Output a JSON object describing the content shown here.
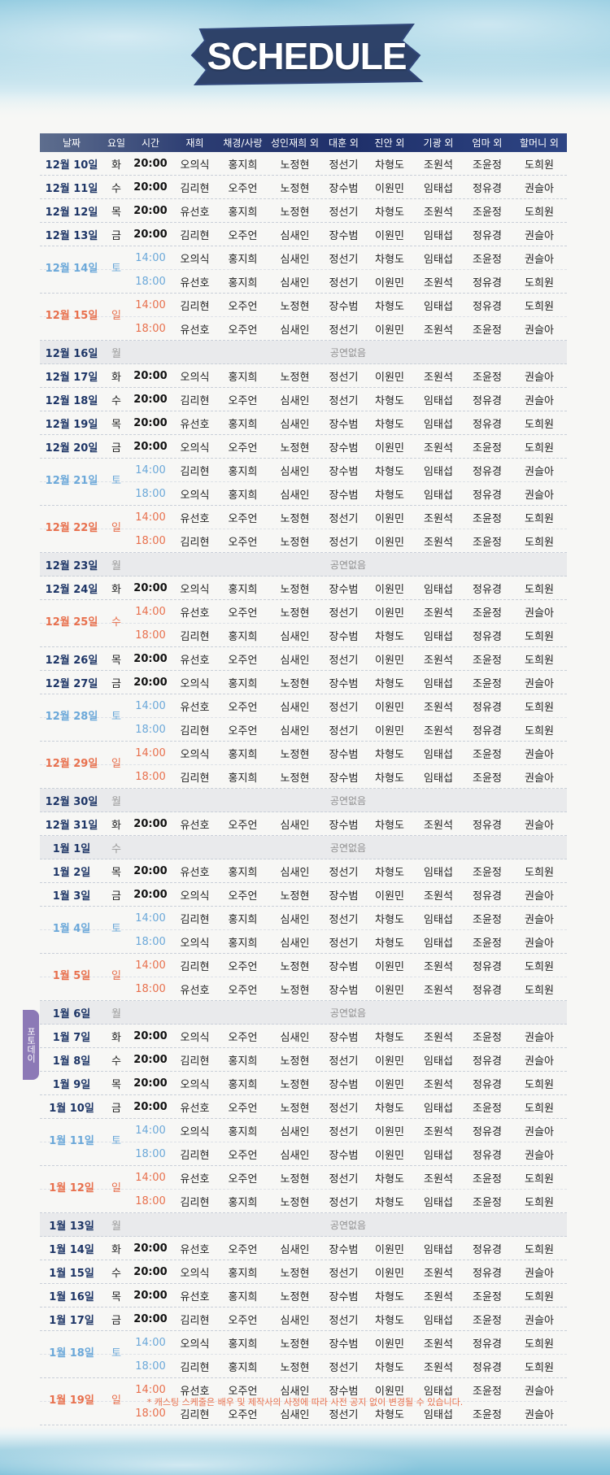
{
  "title": "SCHEDULE",
  "columns": [
    "날짜",
    "요일",
    "시간",
    "재희",
    "채경/사랑",
    "성인재희 외",
    "대훈 외",
    "진안 외",
    "기광 외",
    "엄마 외",
    "할머니 외"
  ],
  "no_show_label": "공연없음",
  "side_tab": "포토데이",
  "note": "* 캐스팅 스케줄은 배우 및 제작사의 사정에 따라 사전 공지 없이 변경될 수 있습니다.",
  "colors": {
    "header": "#1f306a",
    "date": "#1d3566",
    "saturday": "#6ba8d9",
    "sunday": "#e8704d",
    "tab": "#8c79b6"
  },
  "schedule": [
    {
      "date": "12월 10일",
      "day": "화",
      "kind": "wk",
      "shows": [
        {
          "time": "20:00",
          "cast": [
            "오의식",
            "홍지희",
            "노정현",
            "정선기",
            "차형도",
            "조원석",
            "조윤정",
            "도희원"
          ]
        }
      ]
    },
    {
      "date": "12월 11일",
      "day": "수",
      "kind": "wk",
      "shows": [
        {
          "time": "20:00",
          "cast": [
            "김리현",
            "오주언",
            "노정현",
            "장수범",
            "이원민",
            "임태섭",
            "정유경",
            "권슬아"
          ]
        }
      ]
    },
    {
      "date": "12월 12일",
      "day": "목",
      "kind": "wk",
      "shows": [
        {
          "time": "20:00",
          "cast": [
            "유선호",
            "홍지희",
            "노정현",
            "정선기",
            "차형도",
            "조원석",
            "조윤정",
            "도희원"
          ]
        }
      ]
    },
    {
      "date": "12월 13일",
      "day": "금",
      "kind": "wk",
      "shows": [
        {
          "time": "20:00",
          "cast": [
            "김리현",
            "오주언",
            "심새인",
            "장수범",
            "이원민",
            "임태섭",
            "정유경",
            "권슬아"
          ]
        }
      ]
    },
    {
      "date": "12월 14일",
      "day": "토",
      "kind": "sat",
      "shows": [
        {
          "time": "14:00",
          "cast": [
            "오의식",
            "홍지희",
            "심새인",
            "정선기",
            "차형도",
            "임태섭",
            "조윤정",
            "권슬아"
          ]
        },
        {
          "time": "18:00",
          "cast": [
            "유선호",
            "홍지희",
            "심새인",
            "정선기",
            "이원민",
            "조원석",
            "정유경",
            "도희원"
          ]
        }
      ]
    },
    {
      "date": "12월 15일",
      "day": "일",
      "kind": "sun",
      "shows": [
        {
          "time": "14:00",
          "cast": [
            "김리현",
            "오주언",
            "노정현",
            "장수범",
            "차형도",
            "임태섭",
            "정유경",
            "도희원"
          ]
        },
        {
          "time": "18:00",
          "cast": [
            "유선호",
            "오주언",
            "심새인",
            "정선기",
            "이원민",
            "조원석",
            "조윤정",
            "권슬아"
          ]
        }
      ]
    },
    {
      "date": "12월 16일",
      "day": "월",
      "kind": "off",
      "shows": []
    },
    {
      "date": "12월 17일",
      "day": "화",
      "kind": "wk",
      "shows": [
        {
          "time": "20:00",
          "cast": [
            "오의식",
            "홍지희",
            "노정현",
            "정선기",
            "이원민",
            "조원석",
            "조윤정",
            "권슬아"
          ]
        }
      ]
    },
    {
      "date": "12월 18일",
      "day": "수",
      "kind": "wk",
      "shows": [
        {
          "time": "20:00",
          "cast": [
            "김리현",
            "오주언",
            "심새인",
            "정선기",
            "차형도",
            "임태섭",
            "정유경",
            "권슬아"
          ]
        }
      ]
    },
    {
      "date": "12월 19일",
      "day": "목",
      "kind": "wk",
      "shows": [
        {
          "time": "20:00",
          "cast": [
            "유선호",
            "홍지희",
            "심새인",
            "장수범",
            "차형도",
            "임태섭",
            "정유경",
            "도희원"
          ]
        }
      ]
    },
    {
      "date": "12월 20일",
      "day": "금",
      "kind": "wk",
      "shows": [
        {
          "time": "20:00",
          "cast": [
            "오의식",
            "오주언",
            "노정현",
            "장수범",
            "이원민",
            "조원석",
            "조윤정",
            "도희원"
          ]
        }
      ]
    },
    {
      "date": "12월 21일",
      "day": "토",
      "kind": "sat",
      "shows": [
        {
          "time": "14:00",
          "cast": [
            "김리현",
            "홍지희",
            "심새인",
            "장수범",
            "차형도",
            "임태섭",
            "정유경",
            "권슬아"
          ]
        },
        {
          "time": "18:00",
          "cast": [
            "오의식",
            "홍지희",
            "심새인",
            "장수범",
            "차형도",
            "임태섭",
            "정유경",
            "권슬아"
          ]
        }
      ]
    },
    {
      "date": "12월 22일",
      "day": "일",
      "kind": "sun",
      "shows": [
        {
          "time": "14:00",
          "cast": [
            "유선호",
            "오주언",
            "노정현",
            "정선기",
            "이원민",
            "조원석",
            "조윤정",
            "도희원"
          ]
        },
        {
          "time": "18:00",
          "cast": [
            "김리현",
            "오주언",
            "노정현",
            "정선기",
            "이원민",
            "조원석",
            "조윤정",
            "도희원"
          ]
        }
      ]
    },
    {
      "date": "12월 23일",
      "day": "월",
      "kind": "off",
      "shows": []
    },
    {
      "date": "12월 24일",
      "day": "화",
      "kind": "wk",
      "shows": [
        {
          "time": "20:00",
          "cast": [
            "오의식",
            "홍지희",
            "노정현",
            "장수범",
            "이원민",
            "임태섭",
            "정유경",
            "도희원"
          ]
        }
      ]
    },
    {
      "date": "12월 25일",
      "day": "수",
      "kind": "sun",
      "shows": [
        {
          "time": "14:00",
          "cast": [
            "유선호",
            "오주언",
            "노정현",
            "정선기",
            "이원민",
            "조원석",
            "조윤정",
            "권슬아"
          ]
        },
        {
          "time": "18:00",
          "cast": [
            "김리현",
            "홍지희",
            "심새인",
            "장수범",
            "차형도",
            "임태섭",
            "정유경",
            "도희원"
          ]
        }
      ]
    },
    {
      "date": "12월 26일",
      "day": "목",
      "kind": "wk",
      "shows": [
        {
          "time": "20:00",
          "cast": [
            "유선호",
            "오주언",
            "심새인",
            "정선기",
            "이원민",
            "조원석",
            "조윤정",
            "도희원"
          ]
        }
      ]
    },
    {
      "date": "12월 27일",
      "day": "금",
      "kind": "wk",
      "shows": [
        {
          "time": "20:00",
          "cast": [
            "오의식",
            "홍지희",
            "노정현",
            "장수범",
            "차형도",
            "임태섭",
            "조윤정",
            "권슬아"
          ]
        }
      ]
    },
    {
      "date": "12월 28일",
      "day": "토",
      "kind": "sat",
      "shows": [
        {
          "time": "14:00",
          "cast": [
            "유선호",
            "오주언",
            "심새인",
            "정선기",
            "이원민",
            "조원석",
            "정유경",
            "도희원"
          ]
        },
        {
          "time": "18:00",
          "cast": [
            "김리현",
            "오주언",
            "심새인",
            "정선기",
            "이원민",
            "조원석",
            "정유경",
            "도희원"
          ]
        }
      ]
    },
    {
      "date": "12월 29일",
      "day": "일",
      "kind": "sun",
      "shows": [
        {
          "time": "14:00",
          "cast": [
            "오의식",
            "홍지희",
            "노정현",
            "장수범",
            "차형도",
            "임태섭",
            "조윤정",
            "권슬아"
          ]
        },
        {
          "time": "18:00",
          "cast": [
            "김리현",
            "홍지희",
            "노정현",
            "장수범",
            "차형도",
            "임태섭",
            "조윤정",
            "권슬아"
          ]
        }
      ]
    },
    {
      "date": "12월 30일",
      "day": "월",
      "kind": "off",
      "shows": []
    },
    {
      "date": "12월 31일",
      "day": "화",
      "kind": "wk",
      "shows": [
        {
          "time": "20:00",
          "cast": [
            "유선호",
            "오주언",
            "심새인",
            "장수범",
            "차형도",
            "조원석",
            "정유경",
            "권슬아"
          ]
        }
      ]
    },
    {
      "date": "1월 1일",
      "day": "수",
      "kind": "off",
      "shows": []
    },
    {
      "date": "1월 2일",
      "day": "목",
      "kind": "wk",
      "shows": [
        {
          "time": "20:00",
          "cast": [
            "유선호",
            "홍지희",
            "심새인",
            "정선기",
            "차형도",
            "임태섭",
            "조윤정",
            "도희원"
          ]
        }
      ]
    },
    {
      "date": "1월 3일",
      "day": "금",
      "kind": "wk",
      "shows": [
        {
          "time": "20:00",
          "cast": [
            "오의식",
            "오주언",
            "노정현",
            "장수범",
            "이원민",
            "조원석",
            "정유경",
            "권슬아"
          ]
        }
      ]
    },
    {
      "date": "1월 4일",
      "day": "토",
      "kind": "sat",
      "shows": [
        {
          "time": "14:00",
          "cast": [
            "김리현",
            "홍지희",
            "심새인",
            "정선기",
            "차형도",
            "임태섭",
            "조윤정",
            "권슬아"
          ]
        },
        {
          "time": "18:00",
          "cast": [
            "오의식",
            "홍지희",
            "심새인",
            "정선기",
            "차형도",
            "임태섭",
            "조윤정",
            "권슬아"
          ]
        }
      ]
    },
    {
      "date": "1월 5일",
      "day": "일",
      "kind": "sun",
      "shows": [
        {
          "time": "14:00",
          "cast": [
            "김리현",
            "오주언",
            "노정현",
            "장수범",
            "이원민",
            "조원석",
            "정유경",
            "도희원"
          ]
        },
        {
          "time": "18:00",
          "cast": [
            "유선호",
            "오주언",
            "노정현",
            "장수범",
            "이원민",
            "조원석",
            "정유경",
            "도희원"
          ]
        }
      ]
    },
    {
      "date": "1월 6일",
      "day": "월",
      "kind": "off",
      "shows": []
    },
    {
      "date": "1월 7일",
      "day": "화",
      "kind": "wk",
      "shows": [
        {
          "time": "20:00",
          "cast": [
            "오의식",
            "오주언",
            "심새인",
            "장수범",
            "차형도",
            "조원석",
            "조윤정",
            "권슬아"
          ]
        }
      ]
    },
    {
      "date": "1월 8일",
      "day": "수",
      "kind": "wk",
      "shows": [
        {
          "time": "20:00",
          "cast": [
            "김리현",
            "홍지희",
            "노정현",
            "정선기",
            "이원민",
            "임태섭",
            "정유경",
            "권슬아"
          ]
        }
      ]
    },
    {
      "date": "1월 9일",
      "day": "목",
      "kind": "wk",
      "shows": [
        {
          "time": "20:00",
          "cast": [
            "오의식",
            "홍지희",
            "노정현",
            "장수범",
            "이원민",
            "조원석",
            "정유경",
            "도희원"
          ]
        }
      ]
    },
    {
      "date": "1월 10일",
      "day": "금",
      "kind": "wk",
      "shows": [
        {
          "time": "20:00",
          "cast": [
            "유선호",
            "오주언",
            "노정현",
            "정선기",
            "차형도",
            "임태섭",
            "조윤정",
            "도희원"
          ]
        }
      ]
    },
    {
      "date": "1월 11일",
      "day": "토",
      "kind": "sat",
      "shows": [
        {
          "time": "14:00",
          "cast": [
            "오의식",
            "홍지희",
            "심새인",
            "정선기",
            "이원민",
            "조원석",
            "정유경",
            "권슬아"
          ]
        },
        {
          "time": "18:00",
          "cast": [
            "김리현",
            "오주언",
            "심새인",
            "장수범",
            "이원민",
            "임태섭",
            "정유경",
            "권슬아"
          ]
        }
      ]
    },
    {
      "date": "1월 12일",
      "day": "일",
      "kind": "sun",
      "shows": [
        {
          "time": "14:00",
          "cast": [
            "유선호",
            "오주언",
            "노정현",
            "정선기",
            "차형도",
            "조원석",
            "조윤정",
            "도희원"
          ]
        },
        {
          "time": "18:00",
          "cast": [
            "김리현",
            "홍지희",
            "노정현",
            "정선기",
            "차형도",
            "임태섭",
            "조윤정",
            "도희원"
          ]
        }
      ]
    },
    {
      "date": "1월 13일",
      "day": "월",
      "kind": "off",
      "shows": []
    },
    {
      "date": "1월 14일",
      "day": "화",
      "kind": "wk",
      "shows": [
        {
          "time": "20:00",
          "cast": [
            "유선호",
            "오주언",
            "심새인",
            "장수범",
            "이원민",
            "임태섭",
            "정유경",
            "도희원"
          ]
        }
      ]
    },
    {
      "date": "1월 15일",
      "day": "수",
      "kind": "wk",
      "shows": [
        {
          "time": "20:00",
          "cast": [
            "오의식",
            "홍지희",
            "노정현",
            "정선기",
            "이원민",
            "조원석",
            "정유경",
            "권슬아"
          ]
        }
      ]
    },
    {
      "date": "1월 16일",
      "day": "목",
      "kind": "wk",
      "shows": [
        {
          "time": "20:00",
          "cast": [
            "유선호",
            "홍지희",
            "노정현",
            "장수범",
            "차형도",
            "조원석",
            "조윤정",
            "도희원"
          ]
        }
      ]
    },
    {
      "date": "1월 17일",
      "day": "금",
      "kind": "wk",
      "shows": [
        {
          "time": "20:00",
          "cast": [
            "김리현",
            "오주언",
            "심새인",
            "정선기",
            "차형도",
            "임태섭",
            "조윤정",
            "권슬아"
          ]
        }
      ]
    },
    {
      "date": "1월 18일",
      "day": "토",
      "kind": "sat",
      "shows": [
        {
          "time": "14:00",
          "cast": [
            "오의식",
            "홍지희",
            "노정현",
            "장수범",
            "이원민",
            "조원석",
            "정유경",
            "도희원"
          ]
        },
        {
          "time": "18:00",
          "cast": [
            "김리현",
            "홍지희",
            "노정현",
            "정선기",
            "차형도",
            "조원석",
            "정유경",
            "도희원"
          ]
        }
      ]
    },
    {
      "date": "1월 19일",
      "day": "일",
      "kind": "sun",
      "shows": [
        {
          "time": "14:00",
          "cast": [
            "유선호",
            "오주언",
            "심새인",
            "장수범",
            "이원민",
            "임태섭",
            "조윤정",
            "권슬아"
          ]
        },
        {
          "time": "18:00",
          "cast": [
            "김리현",
            "오주언",
            "심새인",
            "정선기",
            "차형도",
            "임태섭",
            "조윤정",
            "권슬아"
          ]
        }
      ]
    }
  ]
}
